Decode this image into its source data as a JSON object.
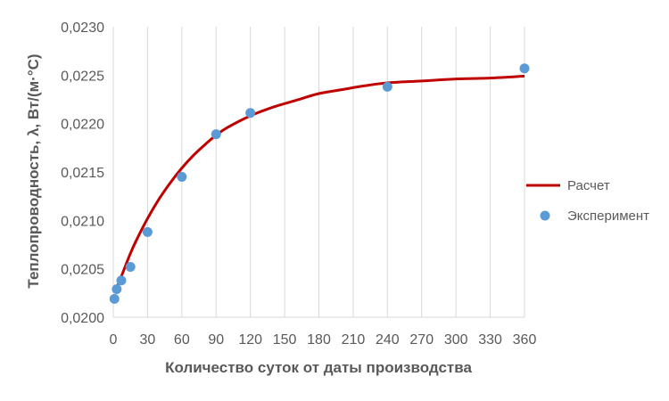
{
  "chart_data": {
    "type": "scatter",
    "xlabel": "Количество суток от даты производства",
    "ylabel": "Теплопроводность, λ, Вт/(м·°С)",
    "xlim": [
      0,
      360
    ],
    "ylim": [
      0.02,
      0.023
    ],
    "x_ticks": [
      0,
      30,
      60,
      90,
      120,
      150,
      180,
      210,
      240,
      270,
      300,
      330,
      360
    ],
    "x_tick_labels": [
      "0",
      "30",
      "60",
      "90",
      "120",
      "150",
      "180",
      "210",
      "240",
      "270",
      "300",
      "330",
      "360"
    ],
    "y_ticks": [
      0.02,
      0.0205,
      0.021,
      0.0215,
      0.022,
      0.0225,
      0.023
    ],
    "y_tick_labels": [
      "0,0200",
      "0,0205",
      "0,0210",
      "0,0215",
      "0,0220",
      "0,0225",
      "0,0230"
    ],
    "grid": {
      "vertical": true,
      "horizontal": false
    },
    "legend_position": "right",
    "series": [
      {
        "name": "Расчет",
        "kind": "line",
        "color": "#c00000",
        "x": [
          2,
          5,
          10,
          15,
          20,
          30,
          40,
          50,
          60,
          70,
          80,
          90,
          100,
          120,
          140,
          160,
          180,
          200,
          220,
          240,
          270,
          300,
          330,
          360
        ],
        "y": [
          0.02027,
          0.02036,
          0.02051,
          0.02066,
          0.02079,
          0.02102,
          0.02122,
          0.02139,
          0.02154,
          0.02167,
          0.02178,
          0.02188,
          0.02196,
          0.02208,
          0.02217,
          0.02224,
          0.02231,
          0.02235,
          0.02239,
          0.02242,
          0.02244,
          0.02246,
          0.02247,
          0.02249
        ]
      },
      {
        "name": "Эксперимент",
        "kind": "scatter",
        "color": "#5b9bd5",
        "x": [
          1,
          3,
          7,
          15,
          30,
          60,
          90,
          120,
          240,
          360
        ],
        "y": [
          0.02019,
          0.02029,
          0.02038,
          0.02052,
          0.02088,
          0.02145,
          0.02189,
          0.02211,
          0.02238,
          0.02257
        ]
      }
    ]
  }
}
